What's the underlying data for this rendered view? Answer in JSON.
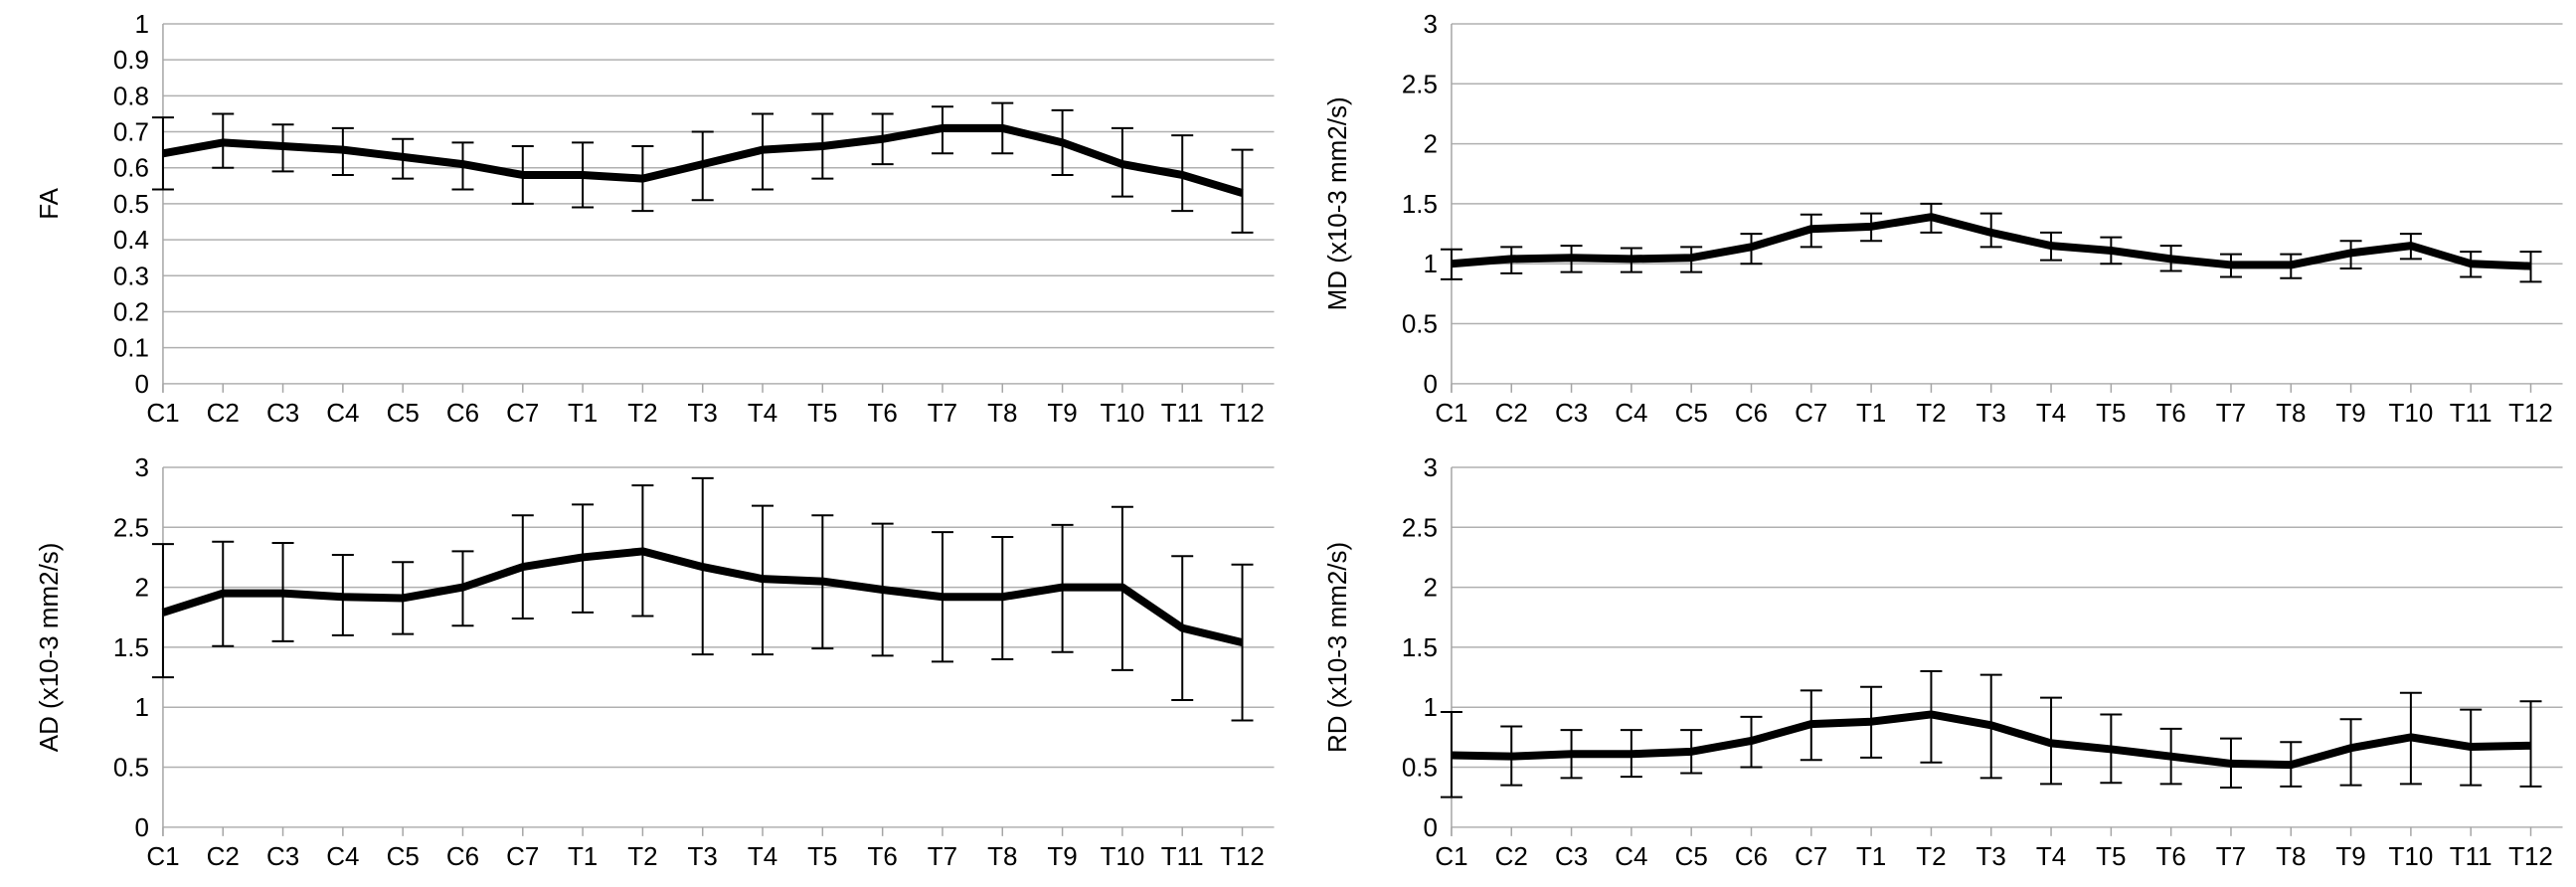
{
  "figure": {
    "description": "Four line charts with error bars showing DTI metrics (FA, MD, AD, RD) across vertebral levels C1-T12",
    "background_color": "#ffffff",
    "series_color": "#000000",
    "grid_color": "#b0b0b0",
    "axis_color": "#a6a6a6",
    "text_color": "#000000"
  },
  "chart_data": [
    {
      "id": "fa",
      "type": "line",
      "title": "",
      "xlabel": "",
      "ylabel": "FA",
      "ylim": [
        0,
        1
      ],
      "grid": true,
      "legend": "none",
      "error_bars": true,
      "yticks": [
        {
          "value": 0,
          "label": "0"
        },
        {
          "value": 0.1,
          "label": "0.1"
        },
        {
          "value": 0.2,
          "label": "0.2"
        },
        {
          "value": 0.3,
          "label": "0.3"
        },
        {
          "value": 0.4,
          "label": "0.4"
        },
        {
          "value": 0.5,
          "label": "0.5"
        },
        {
          "value": 0.6,
          "label": "0.6"
        },
        {
          "value": 0.7,
          "label": "0.7"
        },
        {
          "value": 0.8,
          "label": "0.8"
        },
        {
          "value": 0.9,
          "label": "0.9"
        },
        {
          "value": 1,
          "label": "1"
        }
      ],
      "categories": [
        "C1",
        "C2",
        "C3",
        "C4",
        "C5",
        "C6",
        "C7",
        "T1",
        "T2",
        "T3",
        "T4",
        "T5",
        "T6",
        "T7",
        "T8",
        "T9",
        "T10",
        "T11",
        "T12"
      ],
      "series": [
        {
          "name": "FA",
          "values": [
            0.64,
            0.67,
            0.66,
            0.65,
            0.63,
            0.61,
            0.58,
            0.58,
            0.57,
            0.61,
            0.65,
            0.66,
            0.68,
            0.71,
            0.71,
            0.67,
            0.61,
            0.58,
            0.53
          ],
          "upper": [
            0.74,
            0.75,
            0.72,
            0.71,
            0.68,
            0.67,
            0.66,
            0.67,
            0.66,
            0.7,
            0.75,
            0.75,
            0.75,
            0.77,
            0.78,
            0.76,
            0.71,
            0.69,
            0.65
          ],
          "lower": [
            0.54,
            0.6,
            0.59,
            0.58,
            0.57,
            0.54,
            0.5,
            0.49,
            0.48,
            0.51,
            0.54,
            0.57,
            0.61,
            0.64,
            0.64,
            0.58,
            0.52,
            0.48,
            0.42
          ]
        }
      ]
    },
    {
      "id": "md",
      "type": "line",
      "title": "",
      "xlabel": "",
      "ylabel": "MD (x10-3 mm2/s)",
      "ylim": [
        0,
        3
      ],
      "grid": true,
      "legend": "none",
      "error_bars": true,
      "yticks": [
        {
          "value": 0,
          "label": "0"
        },
        {
          "value": 0.5,
          "label": "0.5"
        },
        {
          "value": 1,
          "label": "1"
        },
        {
          "value": 1.5,
          "label": "1.5"
        },
        {
          "value": 2,
          "label": "2"
        },
        {
          "value": 2.5,
          "label": "2.5"
        },
        {
          "value": 3,
          "label": "3"
        }
      ],
      "categories": [
        "C1",
        "C2",
        "C3",
        "C4",
        "C5",
        "C6",
        "C7",
        "T1",
        "T2",
        "T3",
        "T4",
        "T5",
        "T6",
        "T7",
        "T8",
        "T9",
        "T10",
        "T11",
        "T12"
      ],
      "series": [
        {
          "name": "MD",
          "values": [
            1.0,
            1.04,
            1.05,
            1.04,
            1.05,
            1.14,
            1.29,
            1.31,
            1.39,
            1.26,
            1.15,
            1.11,
            1.04,
            0.99,
            0.99,
            1.09,
            1.15,
            1.0,
            0.98
          ],
          "upper": [
            1.12,
            1.14,
            1.15,
            1.13,
            1.14,
            1.25,
            1.41,
            1.42,
            1.5,
            1.42,
            1.26,
            1.22,
            1.15,
            1.08,
            1.08,
            1.19,
            1.25,
            1.1,
            1.1
          ],
          "lower": [
            0.87,
            0.92,
            0.93,
            0.93,
            0.93,
            1.0,
            1.14,
            1.19,
            1.26,
            1.14,
            1.03,
            1.0,
            0.94,
            0.89,
            0.88,
            0.96,
            1.04,
            0.89,
            0.85
          ]
        }
      ]
    },
    {
      "id": "ad",
      "type": "line",
      "title": "",
      "xlabel": "",
      "ylabel": "AD (x10-3 mm2/s)",
      "ylim": [
        0,
        3
      ],
      "grid": true,
      "legend": "none",
      "error_bars": true,
      "yticks": [
        {
          "value": 0,
          "label": "0"
        },
        {
          "value": 0.5,
          "label": "0.5"
        },
        {
          "value": 1,
          "label": "1"
        },
        {
          "value": 1.5,
          "label": "1.5"
        },
        {
          "value": 2,
          "label": "2"
        },
        {
          "value": 2.5,
          "label": "2.5"
        },
        {
          "value": 3,
          "label": "3"
        }
      ],
      "categories": [
        "C1",
        "C2",
        "C3",
        "C4",
        "C5",
        "C6",
        "C7",
        "T1",
        "T2",
        "T3",
        "T4",
        "T5",
        "T6",
        "T7",
        "T8",
        "T9",
        "T10",
        "T11",
        "T12"
      ],
      "series": [
        {
          "name": "AD",
          "values": [
            1.79,
            1.95,
            1.95,
            1.92,
            1.91,
            2.0,
            2.17,
            2.25,
            2.3,
            2.17,
            2.07,
            2.05,
            1.98,
            1.92,
            1.92,
            2.0,
            2.0,
            1.66,
            1.54
          ],
          "upper": [
            2.36,
            2.38,
            2.37,
            2.27,
            2.21,
            2.3,
            2.6,
            2.69,
            2.85,
            2.91,
            2.68,
            2.6,
            2.53,
            2.46,
            2.42,
            2.52,
            2.67,
            2.26,
            2.19
          ],
          "lower": [
            1.25,
            1.51,
            1.55,
            1.6,
            1.61,
            1.68,
            1.74,
            1.79,
            1.76,
            1.44,
            1.44,
            1.49,
            1.43,
            1.38,
            1.4,
            1.46,
            1.31,
            1.06,
            0.89
          ]
        }
      ]
    },
    {
      "id": "rd",
      "type": "line",
      "title": "",
      "xlabel": "",
      "ylabel": "RD (x10-3 mm2/s)",
      "ylim": [
        0,
        3
      ],
      "grid": true,
      "legend": "none",
      "error_bars": true,
      "yticks": [
        {
          "value": 0,
          "label": "0"
        },
        {
          "value": 0.5,
          "label": "0.5"
        },
        {
          "value": 1,
          "label": "1"
        },
        {
          "value": 1.5,
          "label": "1.5"
        },
        {
          "value": 2,
          "label": "2"
        },
        {
          "value": 2.5,
          "label": "2.5"
        },
        {
          "value": 3,
          "label": "3"
        }
      ],
      "categories": [
        "C1",
        "C2",
        "C3",
        "C4",
        "C5",
        "C6",
        "C7",
        "T1",
        "T2",
        "T3",
        "T4",
        "T5",
        "T6",
        "T7",
        "T8",
        "T9",
        "T10",
        "T11",
        "T12"
      ],
      "series": [
        {
          "name": "RD",
          "values": [
            0.6,
            0.59,
            0.61,
            0.61,
            0.63,
            0.72,
            0.86,
            0.88,
            0.94,
            0.85,
            0.7,
            0.65,
            0.59,
            0.53,
            0.52,
            0.66,
            0.75,
            0.67,
            0.68
          ],
          "upper": [
            0.96,
            0.84,
            0.81,
            0.81,
            0.81,
            0.92,
            1.14,
            1.17,
            1.3,
            1.27,
            1.08,
            0.94,
            0.82,
            0.74,
            0.71,
            0.9,
            1.12,
            0.98,
            1.05
          ],
          "lower": [
            0.25,
            0.35,
            0.41,
            0.42,
            0.45,
            0.5,
            0.56,
            0.58,
            0.54,
            0.41,
            0.36,
            0.37,
            0.36,
            0.33,
            0.34,
            0.35,
            0.36,
            0.35,
            0.34
          ]
        }
      ]
    }
  ]
}
